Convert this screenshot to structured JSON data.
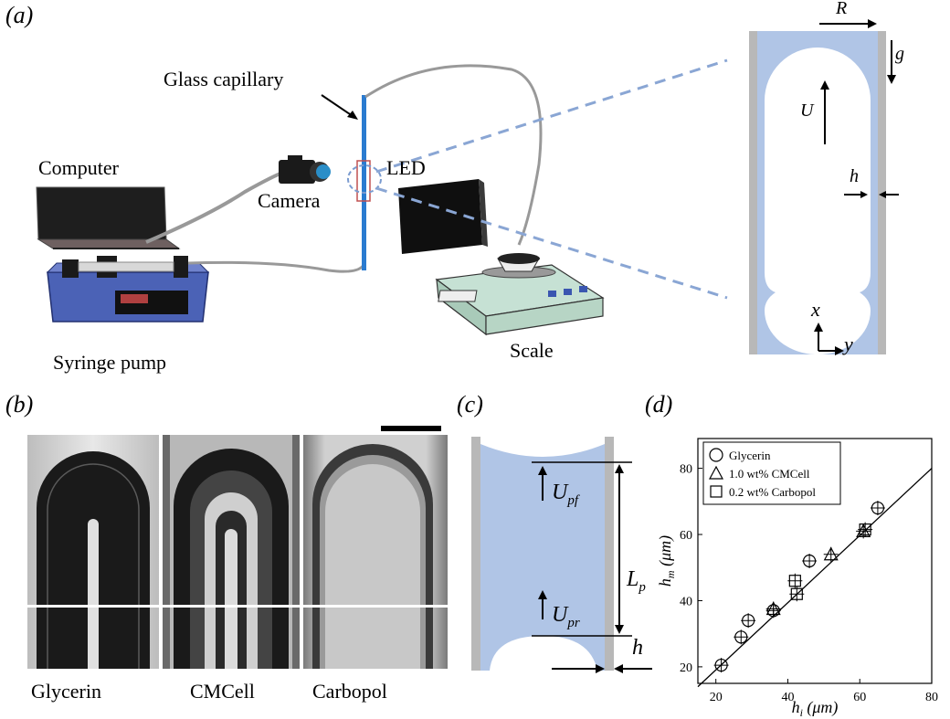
{
  "panels": {
    "a": {
      "tag": "(a)",
      "labels": {
        "capillary": "Glass capillary",
        "computer": "Computer",
        "camera": "Camera",
        "led": "LED",
        "pump": "Syringe pump",
        "scale": "Scale"
      },
      "inset": {
        "R": "R",
        "g": "g",
        "U": "U",
        "h": "h",
        "x": "x",
        "y": "y"
      }
    },
    "b": {
      "tag": "(b)",
      "captions": [
        "Glycerin",
        "CMCell",
        "Carbopol"
      ]
    },
    "c": {
      "tag": "(c)",
      "U_pf": "U",
      "U_pf_sub": "pf",
      "L_p": "L",
      "L_p_sub": "p",
      "U_pr": "U",
      "U_pr_sub": "pr",
      "h": "h"
    },
    "d": {
      "tag": "(d)",
      "legend": [
        "Glycerin",
        "1.0 wt% CMCell",
        "0.2 wt% Carbopol"
      ]
    }
  },
  "chart_data": {
    "type": "scatter",
    "xlabel": "h_i (μm)",
    "ylabel": "h_m (μm)",
    "xlim": [
      15,
      80
    ],
    "ylim": [
      15,
      89
    ],
    "xticks": [
      "20",
      "40",
      "60",
      "80"
    ],
    "yticks": [
      "20",
      "40",
      "60",
      "80"
    ],
    "grid": false,
    "legend_position": "top-left",
    "series": [
      {
        "name": "Glycerin",
        "marker": "circle",
        "points": [
          [
            21.5,
            20.5
          ],
          [
            27,
            29
          ],
          [
            29,
            34
          ],
          [
            36,
            37
          ],
          [
            46,
            52
          ],
          [
            65,
            68
          ]
        ]
      },
      {
        "name": "1.0 wt% CMCell",
        "marker": "triangle",
        "points": [
          [
            36,
            37.5
          ],
          [
            52,
            54
          ],
          [
            61,
            61
          ]
        ]
      },
      {
        "name": "0.2 wt% Carbopol",
        "marker": "square",
        "points": [
          [
            42,
            46
          ],
          [
            42.5,
            42
          ],
          [
            61.5,
            61.5
          ]
        ]
      }
    ],
    "fit_line": {
      "x": [
        15,
        80
      ],
      "y": [
        14,
        80
      ]
    }
  }
}
